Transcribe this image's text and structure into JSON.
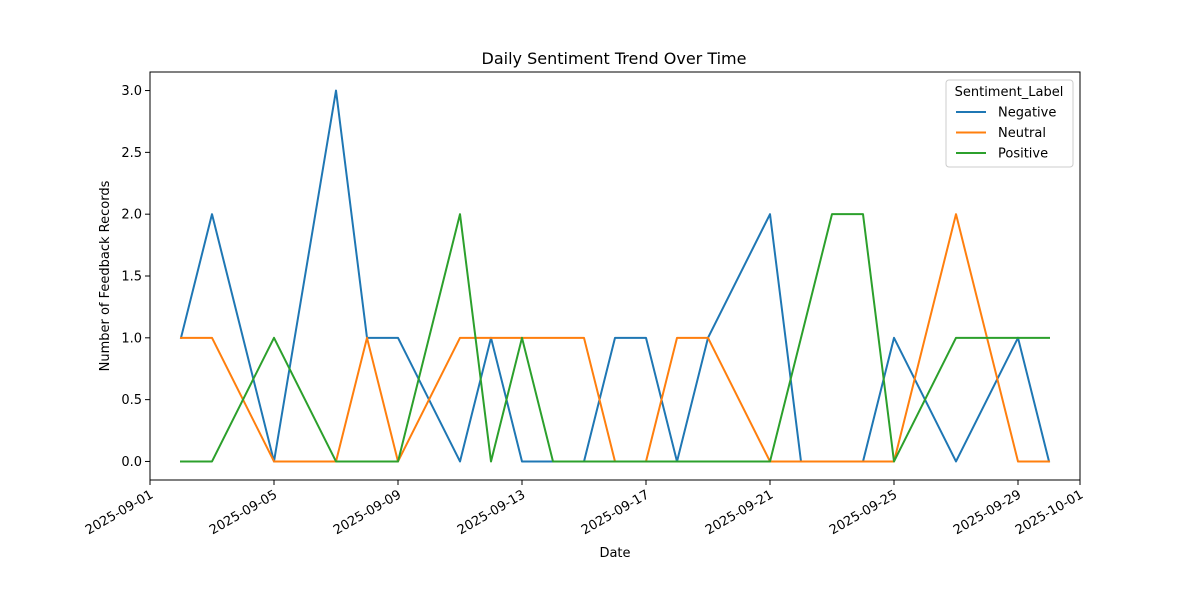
{
  "chart_data": {
    "type": "line",
    "title": "Daily Sentiment Trend Over Time",
    "xlabel": "Date",
    "ylabel": "Number of Feedback Records",
    "x": [
      "2025-09-02",
      "2025-09-03",
      "2025-09-05",
      "2025-09-07",
      "2025-09-08",
      "2025-09-09",
      "2025-09-11",
      "2025-09-12",
      "2025-09-13",
      "2025-09-14",
      "2025-09-15",
      "2025-09-16",
      "2025-09-17",
      "2025-09-18",
      "2025-09-19",
      "2025-09-21",
      "2025-09-22",
      "2025-09-23",
      "2025-09-24",
      "2025-09-25",
      "2025-09-27",
      "2025-09-29",
      "2025-09-30"
    ],
    "series": [
      {
        "name": "Negative",
        "color": "#1f77b4",
        "values": [
          1,
          2,
          0,
          3,
          1,
          1,
          0,
          1,
          0,
          0,
          0,
          1,
          1,
          0,
          1,
          2,
          0,
          0,
          0,
          1,
          0,
          1,
          0
        ]
      },
      {
        "name": "Neutral",
        "color": "#ff7f0e",
        "values": [
          1,
          1,
          0,
          0,
          1,
          0,
          1,
          1,
          1,
          1,
          1,
          0,
          0,
          1,
          1,
          0,
          0,
          0,
          0,
          0,
          2,
          0,
          0
        ]
      },
      {
        "name": "Positive",
        "color": "#2ca02c",
        "values": [
          0,
          0,
          1,
          0,
          0,
          0,
          2,
          0,
          1,
          0,
          0,
          0,
          0,
          0,
          0,
          0,
          1,
          2,
          2,
          0,
          1,
          1,
          1
        ]
      }
    ],
    "xlim": [
      "2025-09-01",
      "2025-10-01"
    ],
    "ylim": [
      -0.15,
      3.15
    ],
    "xticks": [
      "2025-09-01",
      "2025-09-05",
      "2025-09-09",
      "2025-09-13",
      "2025-09-17",
      "2025-09-21",
      "2025-09-25",
      "2025-09-29",
      "2025-10-01"
    ],
    "yticks": [
      "0.0",
      "0.5",
      "1.0",
      "1.5",
      "2.0",
      "2.5",
      "3.0"
    ],
    "legend": {
      "title": "Sentiment_Label",
      "placement": "upper-right"
    },
    "grid": false
  }
}
